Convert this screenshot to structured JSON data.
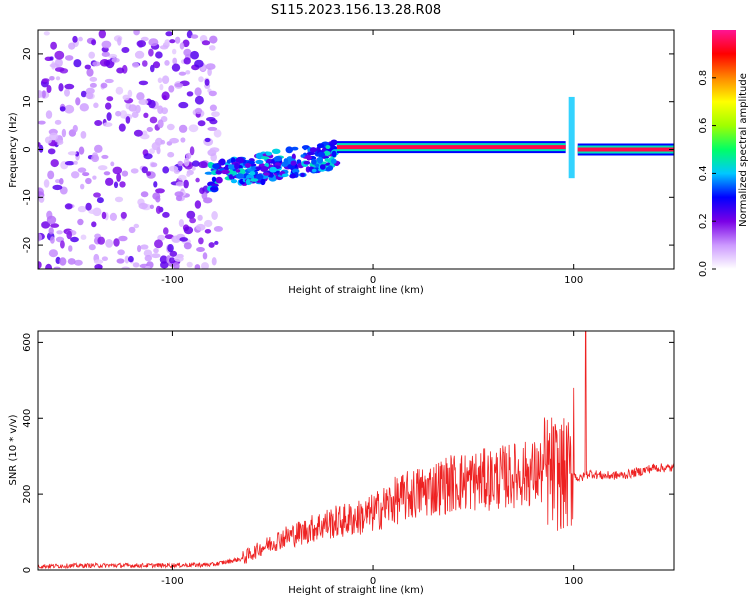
{
  "figure_title": "S115.2023.156.13.28.R08",
  "chart_data": [
    {
      "type": "heatmap",
      "panel": "spectrogram",
      "xlabel": "Height of straight line (km)",
      "ylabel": "Frequency (Hz)",
      "xlim": [
        -167,
        150
      ],
      "ylim": [
        -25,
        25
      ],
      "xticks": [
        -100,
        0,
        100
      ],
      "yticks": [
        -20,
        -10,
        0,
        10,
        20
      ],
      "colorbar": {
        "label": "Normalized spectral amplitude",
        "range": [
          0.0,
          1.0
        ],
        "ticks": [
          0.0,
          0.2,
          0.4,
          0.6,
          0.8
        ],
        "colormap": [
          "#ffffff",
          "#cc99ff",
          "#7a00e6",
          "#0000ff",
          "#00c8ff",
          "#00ff66",
          "#a0ff00",
          "#ffff00",
          "#ff8800",
          "#ff0000",
          "#ff1493"
        ]
      },
      "features": [
        {
          "region": "noise",
          "x_range": [
            -167,
            -77
          ],
          "freq_range": [
            -25,
            25
          ],
          "amplitude": 0.1
        },
        {
          "region": "ascent",
          "x_range": [
            -82,
            -18
          ],
          "freq_start": -6,
          "freq_end": -1,
          "amplitude": 0.35
        },
        {
          "region": "signal_line",
          "x_range": [
            -18,
            96
          ],
          "freq": 0.5,
          "amplitude": 0.95
        },
        {
          "region": "spike",
          "x": 99,
          "freq_range": [
            -6,
            11
          ],
          "amplitude": 0.4
        },
        {
          "region": "signal_line",
          "x_range": [
            102,
            150
          ],
          "freq": 0,
          "amplitude": 0.95
        }
      ]
    },
    {
      "type": "line",
      "panel": "snr",
      "xlabel": "Height of straight line (km)",
      "ylabel": "SNR (10 * v/v)",
      "xlim": [
        -167,
        150
      ],
      "ylim": [
        0,
        630
      ],
      "xticks": [
        -100,
        0,
        100
      ],
      "yticks": [
        0,
        200,
        400,
        600
      ],
      "color": "#ee2222",
      "series": [
        {
          "x": [
            -167,
            -140,
            -110,
            -80,
            -65,
            -55,
            -45,
            -35,
            -25,
            -15,
            -5,
            0,
            10,
            20,
            30,
            40,
            50,
            60,
            70,
            80,
            88,
            93,
            97,
            100,
            103,
            106,
            108,
            115,
            125,
            135,
            140,
            150
          ],
          "y": [
            10,
            12,
            12,
            14,
            30,
            60,
            85,
            100,
            120,
            130,
            140,
            150,
            180,
            200,
            215,
            230,
            235,
            240,
            250,
            255,
            260,
            250,
            250,
            250,
            240,
            250,
            255,
            248,
            250,
            262,
            270,
            268
          ]
        }
      ],
      "spikes": [
        {
          "x": 100,
          "y": 480
        },
        {
          "x": 106,
          "y": 630
        }
      ]
    }
  ]
}
